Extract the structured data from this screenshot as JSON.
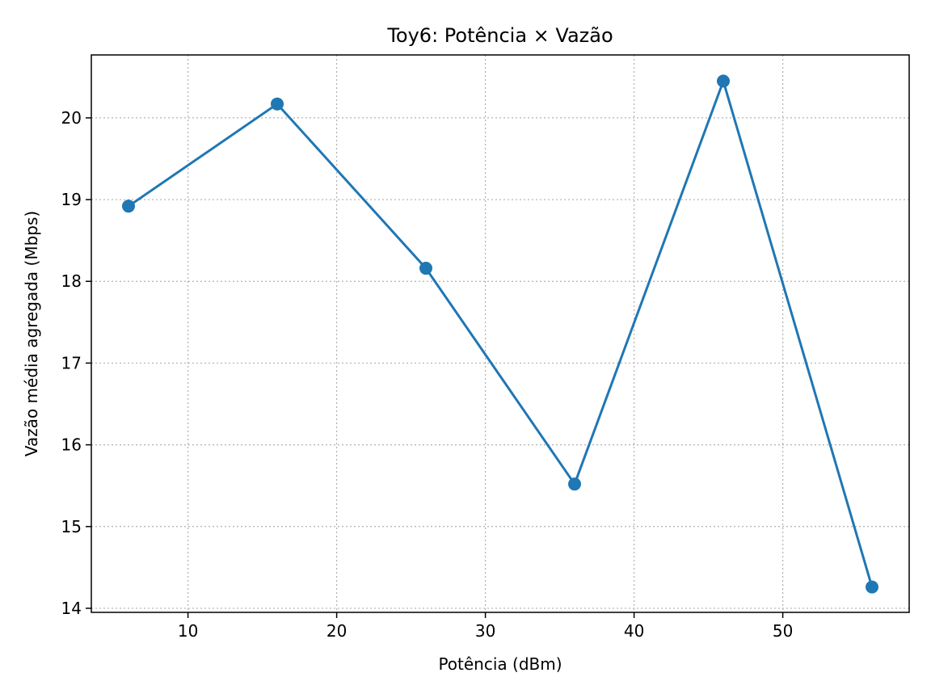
{
  "chart_data": {
    "type": "line",
    "title": "Toy6: Potência × Vazão",
    "xlabel": "Potência (dBm)",
    "ylabel": "Vazão média agregada (Mbps)",
    "x": [
      6,
      16,
      26,
      36,
      46,
      56
    ],
    "series": [
      {
        "values": [
          18.92,
          20.17,
          18.16,
          15.52,
          20.45,
          14.26
        ],
        "color": "#1f77b4",
        "marker": "circle"
      }
    ],
    "xlim": [
      3.5,
      58.5
    ],
    "ylim": [
      13.95,
      20.77
    ],
    "xticks": [
      10,
      20,
      30,
      40,
      50
    ],
    "yticks": [
      14,
      15,
      16,
      17,
      18,
      19,
      20
    ],
    "grid": true,
    "legend": "none"
  }
}
